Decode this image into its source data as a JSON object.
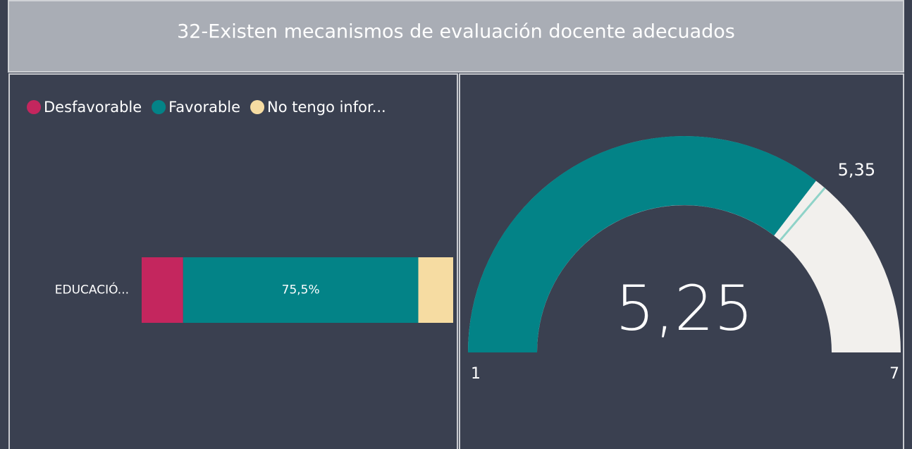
{
  "title": "32-Existen mecanismos de evaluación docente adecuados",
  "chart_data": [
    {
      "type": "stacked-bar-100",
      "categories": [
        "EDUCACIÓ..."
      ],
      "series": [
        {
          "name": "Desfavorable",
          "color": "#c4265e",
          "values": [
            13.3
          ]
        },
        {
          "name": "Favorable",
          "color": "#038387",
          "values": [
            75.5
          ],
          "value_labels": [
            "75,5%"
          ]
        },
        {
          "name": "No tengo infor...",
          "color": "#f6dca2",
          "values": [
            11.2
          ]
        }
      ],
      "xlim": [
        0,
        100
      ]
    },
    {
      "type": "gauge",
      "min": 1,
      "max": 7,
      "value": 5.25,
      "value_label": "5,25",
      "target": 5.35,
      "target_label": "5,35",
      "color": "#038387",
      "track_color": "#f2f0ed",
      "target_color": "#8fd3c8"
    }
  ]
}
